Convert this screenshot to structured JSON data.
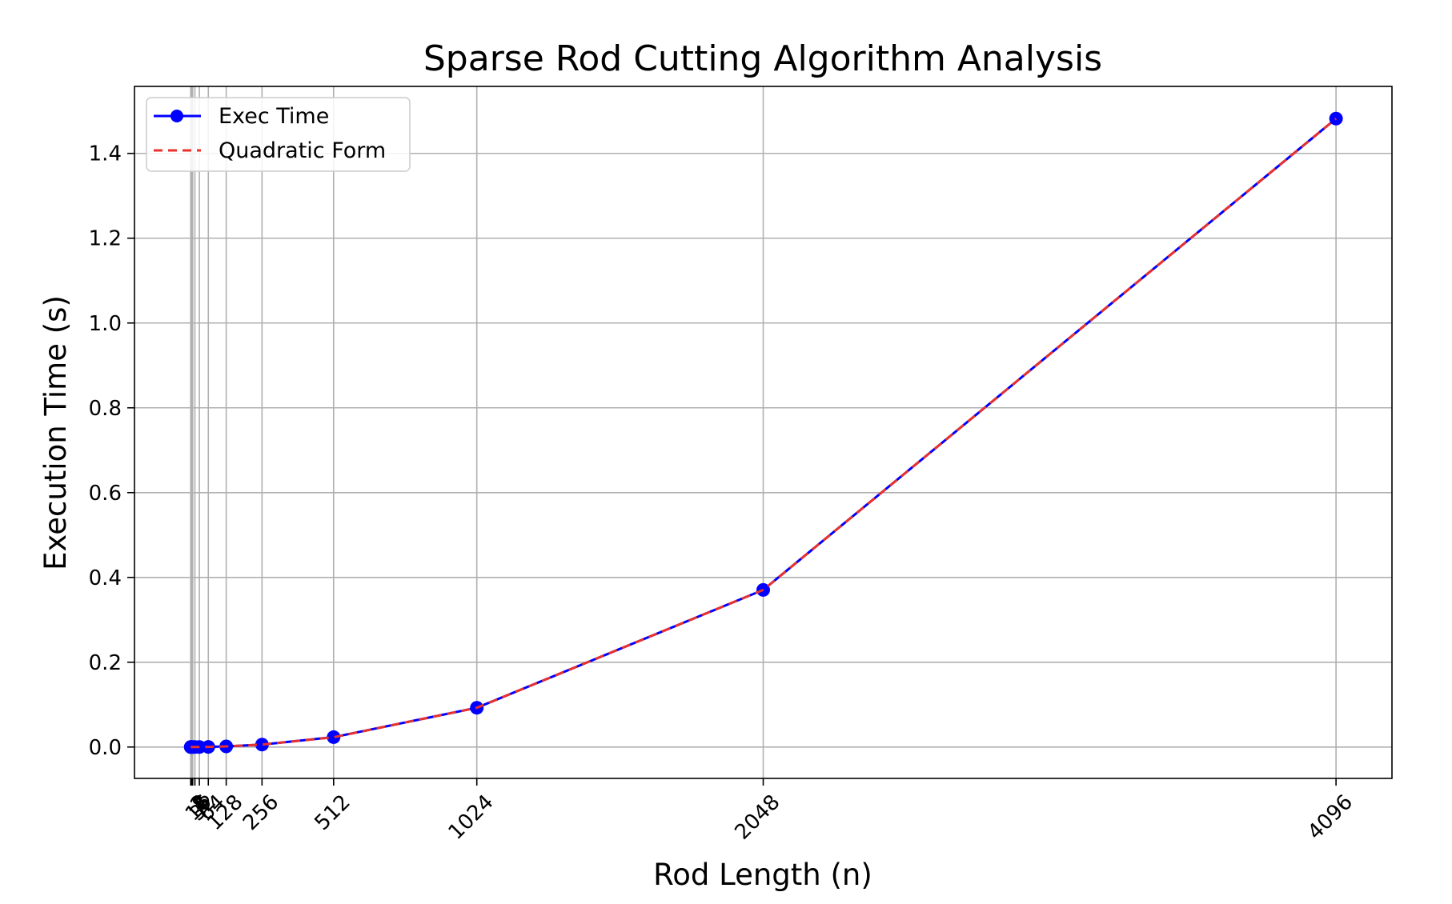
{
  "chart_data": {
    "type": "line",
    "title": "Sparse Rod Cutting Algorithm Analysis",
    "xlabel": "Rod Length (n)",
    "ylabel": "Execution Time (s)",
    "x": [
      1,
      2,
      4,
      8,
      16,
      32,
      64,
      128,
      256,
      512,
      1024,
      2048,
      4096
    ],
    "x_tick_labels": [
      "1",
      "2",
      "4",
      "8",
      "16",
      "32",
      "64",
      "128",
      "256",
      "512",
      "1024",
      "2048",
      "4096"
    ],
    "y_ticks": [
      0.0,
      0.2,
      0.4,
      0.6,
      0.8,
      1.0,
      1.2,
      1.4
    ],
    "y_tick_labels": [
      "0.0",
      "0.2",
      "0.4",
      "0.6",
      "0.8",
      "1.0",
      "1.2",
      "1.4"
    ],
    "xlim": [
      -200,
      4296
    ],
    "ylim": [
      -0.074,
      1.558
    ],
    "grid": true,
    "legend_position": "upper left",
    "series": [
      {
        "name": "Exec Time",
        "color": "#0000ff",
        "style": "solid-with-markers",
        "values": [
          0.0,
          0.0,
          0.0,
          0.0,
          0.0,
          0.0,
          0.0002,
          0.0014,
          0.0058,
          0.0233,
          0.0926,
          0.3705,
          1.482
        ]
      },
      {
        "name": "Quadratic Form",
        "color": "#e8322d",
        "style": "dashed",
        "values": [
          0.0,
          0.0,
          0.0,
          0.0,
          0.0,
          0.0,
          0.0004,
          0.0014,
          0.0058,
          0.023,
          0.0926,
          0.3705,
          1.482
        ]
      }
    ]
  },
  "colors": {
    "grid": "#b0b0b0",
    "axes": "#000000",
    "background": "#ffffff"
  }
}
